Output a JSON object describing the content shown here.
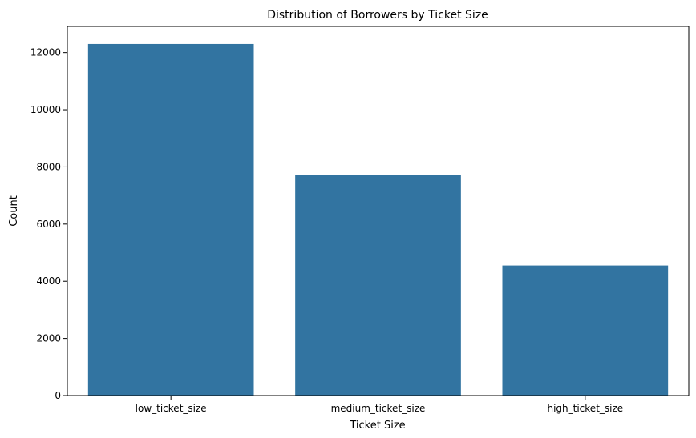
{
  "chart_data": {
    "type": "bar",
    "title": "Distribution of Borrowers by Ticket Size",
    "xlabel": "Ticket Size",
    "ylabel": "Count",
    "categories": [
      "low_ticket_size",
      "medium_ticket_size",
      "high_ticket_size"
    ],
    "values": [
      12300,
      7730,
      4550
    ],
    "ylim": [
      0,
      12915
    ],
    "yticks": [
      0,
      2000,
      4000,
      6000,
      8000,
      10000,
      12000
    ],
    "grid": false,
    "bar_color": "#3274a1"
  }
}
